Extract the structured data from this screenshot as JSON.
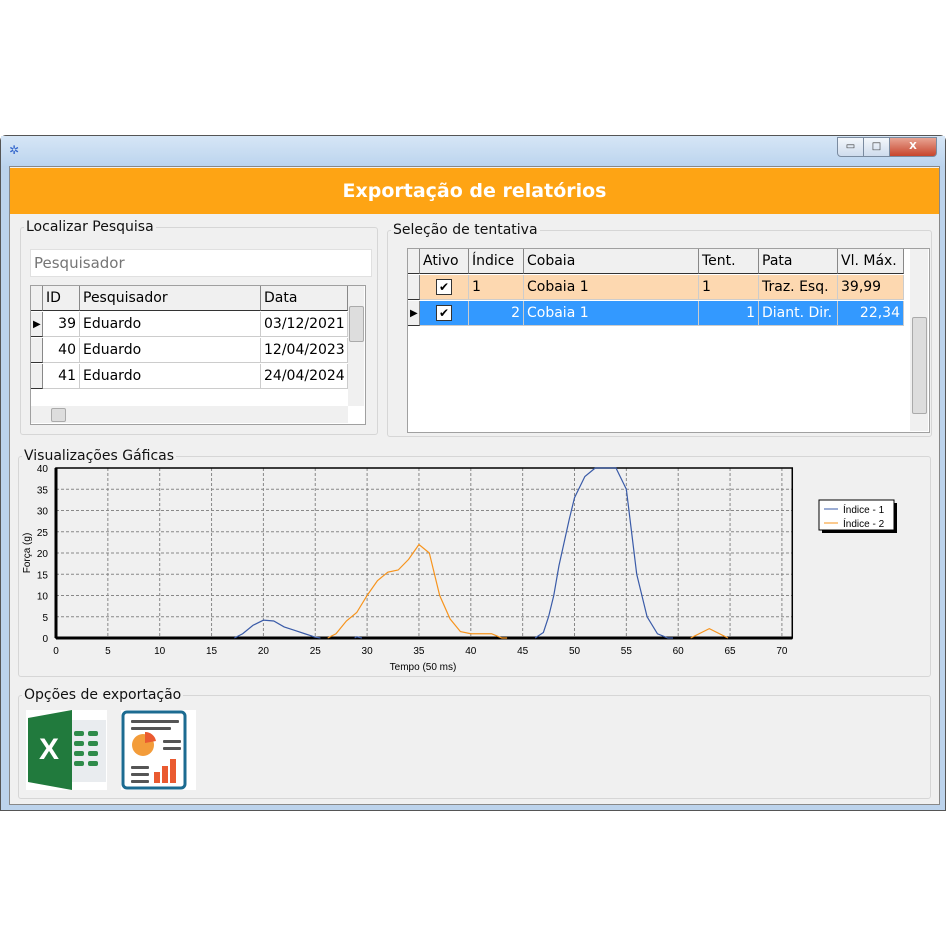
{
  "header": {
    "title": "Exportação de relatórios"
  },
  "window": {
    "controls": {
      "minimize": "▭",
      "maximize": "□",
      "close": "X"
    }
  },
  "search": {
    "group_label": "Localizar Pesquisa",
    "placeholder": "Pesquisador",
    "columns": [
      "ID",
      "Pesquisador",
      "Data"
    ],
    "rows": [
      {
        "id": "39",
        "name": "Eduardo",
        "date": "03/12/2021"
      },
      {
        "id": "40",
        "name": "Eduardo",
        "date": "12/04/2023"
      },
      {
        "id": "41",
        "name": "Eduardo",
        "date": "24/04/2024"
      }
    ]
  },
  "attempts": {
    "group_label": "Seleção de tentativa",
    "columns": [
      "Ativo",
      "Índice",
      "Cobaia",
      "Tent.",
      "Pata",
      "Vl. Máx."
    ],
    "rows": [
      {
        "ativo": true,
        "indice": "1",
        "cobaia": "Cobaia 1",
        "tent": "1",
        "pata": "Traz. Esq.",
        "vlmax": "39,99",
        "color": "#fdd8b0"
      },
      {
        "ativo": true,
        "indice": "2",
        "cobaia": "Cobaia 1",
        "tent": "1",
        "pata": "Diant. Dir.",
        "vlmax": "22,34",
        "color": "#3399ff",
        "selected": true
      }
    ]
  },
  "charts": {
    "group_label": "Visualizações Gáficas"
  },
  "chart_data": {
    "type": "line",
    "xlabel": "Tempo (50 ms)",
    "ylabel": "Força (g)",
    "xlim": [
      0,
      71
    ],
    "ylim": [
      0,
      40
    ],
    "xticks": [
      0,
      5,
      10,
      15,
      20,
      25,
      30,
      35,
      40,
      45,
      50,
      55,
      60,
      65,
      70
    ],
    "yticks": [
      0,
      5,
      10,
      15,
      20,
      25,
      30,
      35,
      40
    ],
    "grid": true,
    "legend": "right",
    "series": [
      {
        "name": "Índice - 1",
        "color": "#3a5ba8",
        "segments": [
          [
            [
              17.2,
              0
            ],
            [
              18,
              1
            ],
            [
              19,
              3
            ],
            [
              20,
              4.2
            ],
            [
              21,
              4
            ],
            [
              22,
              2.6
            ],
            [
              23,
              1.8
            ],
            [
              24,
              1
            ],
            [
              25,
              0.2
            ],
            [
              25.5,
              0
            ]
          ],
          [
            [
              28.8,
              0
            ],
            [
              29,
              0.3
            ],
            [
              29.5,
              0
            ]
          ],
          [
            [
              46.2,
              0
            ],
            [
              47,
              1.3
            ],
            [
              47.5,
              5
            ],
            [
              48,
              10
            ],
            [
              48.5,
              17
            ],
            [
              49,
              22.5
            ],
            [
              49.5,
              28
            ],
            [
              50,
              33
            ],
            [
              51,
              38
            ],
            [
              52,
              40
            ],
            [
              54,
              40
            ],
            [
              55,
              35
            ],
            [
              55.5,
              25
            ],
            [
              56,
              15
            ],
            [
              57,
              5
            ],
            [
              58,
              1
            ],
            [
              59,
              0
            ],
            [
              59.5,
              0
            ]
          ]
        ]
      },
      {
        "name": "Índice - 2",
        "color": "#f7941d",
        "segments": [
          [
            [
              26.2,
              0
            ],
            [
              27,
              1
            ],
            [
              28,
              4
            ],
            [
              29,
              6
            ],
            [
              30,
              10
            ],
            [
              31,
              13.5
            ],
            [
              32,
              15.5
            ],
            [
              33,
              16
            ],
            [
              34,
              18.5
            ],
            [
              35,
              22
            ],
            [
              36,
              20
            ],
            [
              37,
              10
            ],
            [
              38,
              4.5
            ],
            [
              39,
              1.5
            ],
            [
              40,
              1
            ],
            [
              42,
              1
            ],
            [
              43,
              0
            ],
            [
              43.5,
              0
            ]
          ],
          [
            [
              61.2,
              0
            ],
            [
              63,
              2.2
            ],
            [
              64.8,
              0
            ]
          ]
        ]
      }
    ]
  },
  "export": {
    "group_label": "Opções de exportação",
    "excel_icon": "excel-icon",
    "report_icon": "report-icon"
  }
}
